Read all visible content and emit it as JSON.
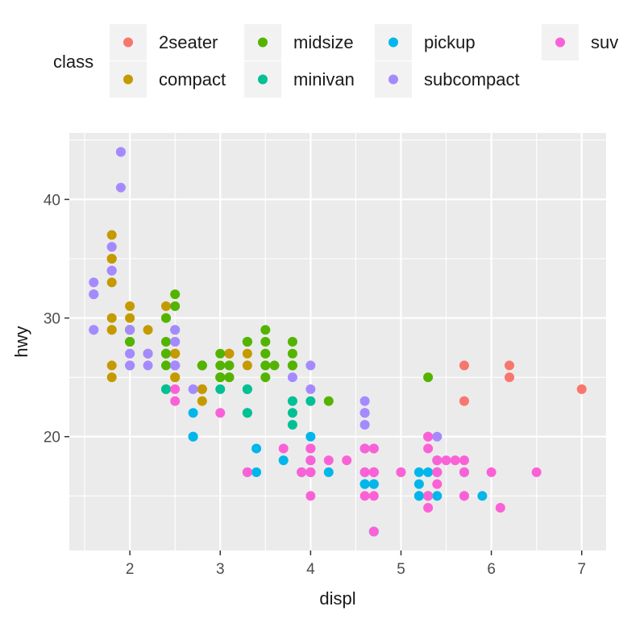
{
  "chart_data": {
    "type": "scatter",
    "title": "",
    "xlabel": "displ",
    "ylabel": "hwy",
    "xlim": [
      1.33,
      7.27
    ],
    "ylim": [
      10.4,
      45.6
    ],
    "xticks": [
      2,
      3,
      4,
      5,
      6,
      7
    ],
    "yticks": [
      20,
      30,
      40
    ],
    "grid": true,
    "legend": {
      "title": "class",
      "placement": "top",
      "order": [
        "2seater",
        "compact",
        "midsize",
        "minivan",
        "pickup",
        "subcompact",
        "suv"
      ]
    },
    "series": [
      {
        "name": "2seater",
        "color": "#F8766D",
        "points": [
          [
            5.7,
            26
          ],
          [
            5.7,
            23
          ],
          [
            6.2,
            26
          ],
          [
            6.2,
            25
          ],
          [
            7.0,
            24
          ]
        ]
      },
      {
        "name": "compact",
        "color": "#C49A00",
        "points": [
          [
            1.8,
            29
          ],
          [
            1.8,
            29
          ],
          [
            2.0,
            31
          ],
          [
            2.0,
            30
          ],
          [
            2.8,
            26
          ],
          [
            2.8,
            26
          ],
          [
            3.1,
            27
          ],
          [
            1.8,
            26
          ],
          [
            1.8,
            25
          ],
          [
            2.0,
            28
          ],
          [
            2.0,
            29
          ],
          [
            2.8,
            24
          ],
          [
            3.1,
            25
          ],
          [
            2.4,
            30
          ],
          [
            2.4,
            31
          ],
          [
            3.1,
            27
          ],
          [
            3.3,
            26
          ],
          [
            3.3,
            27
          ],
          [
            1.8,
            35
          ],
          [
            1.8,
            37
          ],
          [
            1.8,
            35
          ],
          [
            2.0,
            29
          ],
          [
            2.4,
            27
          ],
          [
            2.5,
            25
          ],
          [
            2.5,
            27
          ],
          [
            2.2,
            27
          ],
          [
            2.2,
            29
          ],
          [
            2.5,
            27
          ],
          [
            2.8,
            23
          ],
          [
            1.8,
            33
          ],
          [
            1.8,
            35
          ],
          [
            2.0,
            29
          ],
          [
            2.0,
            26
          ],
          [
            2.8,
            24
          ],
          [
            2.5,
            25
          ],
          [
            2.5,
            26
          ],
          [
            2.5,
            27
          ],
          [
            2.2,
            27
          ],
          [
            1.8,
            30
          ]
        ]
      },
      {
        "name": "midsize",
        "color": "#53B400",
        "points": [
          [
            2.4,
            26
          ],
          [
            3.0,
            25
          ],
          [
            3.1,
            26
          ],
          [
            3.1,
            25
          ],
          [
            3.5,
            28
          ],
          [
            3.5,
            29
          ],
          [
            3.8,
            26
          ],
          [
            3.8,
            27
          ],
          [
            3.8,
            26
          ],
          [
            5.3,
            25
          ],
          [
            2.4,
            27
          ],
          [
            2.4,
            30
          ],
          [
            3.0,
            27
          ],
          [
            3.3,
            28
          ],
          [
            3.3,
            28
          ],
          [
            3.5,
            25
          ],
          [
            3.8,
            28
          ],
          [
            2.4,
            27
          ],
          [
            2.4,
            28
          ],
          [
            3.0,
            25
          ],
          [
            3.5,
            27
          ],
          [
            3.5,
            26
          ],
          [
            2.0,
            28
          ],
          [
            2.0,
            29
          ],
          [
            2.5,
            31
          ],
          [
            2.5,
            32
          ],
          [
            2.8,
            26
          ],
          [
            2.8,
            26
          ],
          [
            3.3,
            28
          ],
          [
            3.6,
            26
          ],
          [
            4.2,
            23
          ],
          [
            3.8,
            26
          ],
          [
            3.5,
            27
          ],
          [
            3.5,
            26
          ],
          [
            3.0,
            26
          ],
          [
            3.1,
            26
          ],
          [
            2.4,
            24
          ],
          [
            2.5,
            29
          ],
          [
            2.0,
            29
          ],
          [
            2.0,
            28
          ],
          [
            3.0,
            25
          ]
        ]
      },
      {
        "name": "minivan",
        "color": "#00C094",
        "points": [
          [
            2.4,
            24
          ],
          [
            3.0,
            24
          ],
          [
            3.3,
            22
          ],
          [
            3.3,
            22
          ],
          [
            3.3,
            24
          ],
          [
            3.3,
            24
          ],
          [
            3.3,
            17
          ],
          [
            3.8,
            22
          ],
          [
            3.8,
            21
          ],
          [
            3.8,
            23
          ],
          [
            4.0,
            23
          ]
        ]
      },
      {
        "name": "pickup",
        "color": "#00B6EB",
        "points": [
          [
            2.7,
            20
          ],
          [
            2.7,
            20
          ],
          [
            2.7,
            22
          ],
          [
            3.4,
            17
          ],
          [
            3.4,
            19
          ],
          [
            4.0,
            18
          ],
          [
            4.0,
            20
          ],
          [
            4.7,
            17
          ],
          [
            4.7,
            12
          ],
          [
            4.7,
            16
          ],
          [
            5.2,
            15
          ],
          [
            5.2,
            16
          ],
          [
            5.7,
            17
          ],
          [
            5.9,
            15
          ],
          [
            4.6,
            16
          ],
          [
            4.6,
            17
          ],
          [
            4.6,
            19
          ],
          [
            5.4,
            15
          ],
          [
            5.4,
            17
          ],
          [
            4.2,
            17
          ],
          [
            3.7,
            18
          ],
          [
            5.2,
            15
          ],
          [
            5.2,
            17
          ],
          [
            4.0,
            17
          ],
          [
            4.7,
            16
          ],
          [
            5.4,
            18
          ],
          [
            4.7,
            19
          ],
          [
            4.7,
            12
          ],
          [
            5.3,
            17
          ],
          [
            4.6,
            16
          ],
          [
            3.9,
            17
          ],
          [
            4.0,
            18
          ],
          [
            5.3,
            15
          ]
        ]
      },
      {
        "name": "subcompact",
        "color": "#A58AFF",
        "points": [
          [
            1.9,
            44
          ],
          [
            1.9,
            41
          ],
          [
            1.8,
            36
          ],
          [
            1.8,
            34
          ],
          [
            1.6,
            33
          ],
          [
            1.6,
            32
          ],
          [
            1.6,
            29
          ],
          [
            2.0,
            26
          ],
          [
            2.0,
            27
          ],
          [
            2.2,
            26
          ],
          [
            2.5,
            28
          ],
          [
            2.5,
            29
          ],
          [
            2.5,
            26
          ],
          [
            2.7,
            24
          ],
          [
            3.8,
            25
          ],
          [
            4.0,
            24
          ],
          [
            4.0,
            26
          ],
          [
            4.6,
            23
          ],
          [
            4.6,
            22
          ],
          [
            4.6,
            21
          ],
          [
            5.4,
            20
          ],
          [
            2.0,
            26
          ],
          [
            2.5,
            26
          ],
          [
            4.6,
            22
          ],
          [
            1.6,
            32
          ],
          [
            1.8,
            34
          ],
          [
            2.5,
            28
          ],
          [
            2.5,
            26
          ],
          [
            2.0,
            29
          ],
          [
            2.0,
            27
          ],
          [
            2.2,
            27
          ],
          [
            1.6,
            29
          ],
          [
            1.8,
            36
          ],
          [
            1.9,
            44
          ],
          [
            1.8,
            34
          ]
        ]
      },
      {
        "name": "suv",
        "color": "#FB61D7",
        "points": [
          [
            5.3,
            20
          ],
          [
            5.3,
            15
          ],
          [
            5.3,
            20
          ],
          [
            5.7,
            17
          ],
          [
            6.0,
            17
          ],
          [
            5.7,
            15
          ],
          [
            6.5,
            17
          ],
          [
            4.7,
            17
          ],
          [
            4.7,
            15
          ],
          [
            4.7,
            17
          ],
          [
            4.7,
            19
          ],
          [
            4.7,
            12
          ],
          [
            5.7,
            15
          ],
          [
            6.1,
            14
          ],
          [
            4.0,
            17
          ],
          [
            4.0,
            19
          ],
          [
            4.6,
            17
          ],
          [
            5.0,
            17
          ],
          [
            4.2,
            18
          ],
          [
            4.7,
            17
          ],
          [
            5.4,
            17
          ],
          [
            5.4,
            18
          ],
          [
            5.4,
            16
          ],
          [
            4.0,
            17
          ],
          [
            4.0,
            15
          ],
          [
            4.0,
            19
          ],
          [
            4.6,
            19
          ],
          [
            5.0,
            17
          ],
          [
            5.5,
            18
          ],
          [
            3.3,
            17
          ],
          [
            3.7,
            19
          ],
          [
            3.9,
            17
          ],
          [
            4.4,
            18
          ],
          [
            4.7,
            17
          ],
          [
            5.6,
            18
          ],
          [
            5.3,
            19
          ],
          [
            5.3,
            14
          ],
          [
            2.5,
            24
          ],
          [
            2.5,
            23
          ],
          [
            3.0,
            22
          ],
          [
            4.0,
            17
          ],
          [
            4.7,
            19
          ],
          [
            5.4,
            17
          ],
          [
            5.7,
            18
          ],
          [
            4.0,
            18
          ],
          [
            4.0,
            18
          ],
          [
            4.6,
            15
          ],
          [
            4.0,
            19
          ]
        ]
      }
    ]
  }
}
